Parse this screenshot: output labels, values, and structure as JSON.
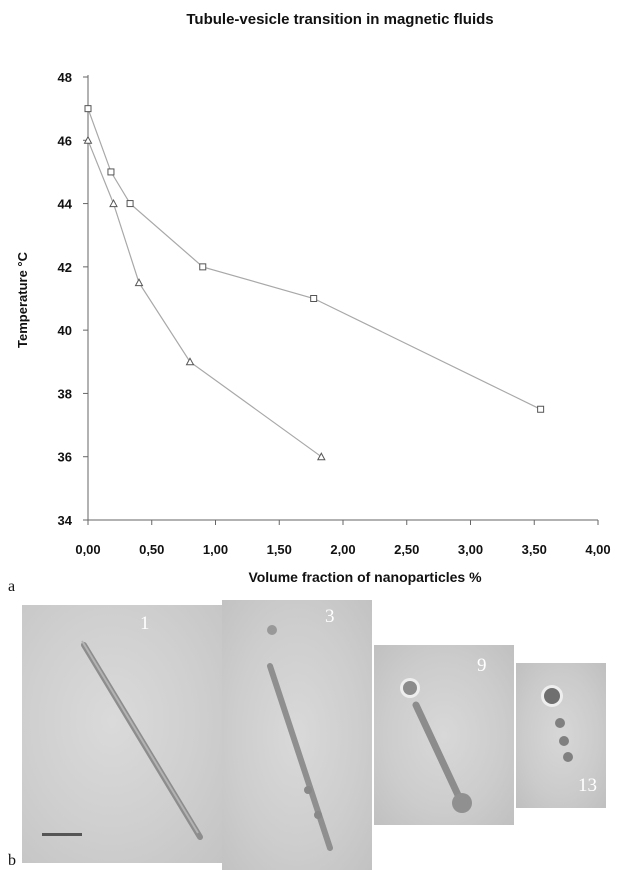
{
  "chart_data": {
    "type": "line",
    "title": "Tubule-vesicle transition in magnetic fluids",
    "xlabel": "Volume fraction of nanoparticles %",
    "ylabel": "Temperature °C",
    "xlim": [
      0,
      4
    ],
    "ylim": [
      34,
      48
    ],
    "x_ticks": [
      "0,00",
      "0,50",
      "1,00",
      "1,50",
      "2,00",
      "2,50",
      "3,00",
      "3,50",
      "4,00"
    ],
    "y_ticks": [
      "34",
      "36",
      "38",
      "40",
      "42",
      "44",
      "46",
      "48"
    ],
    "grid": false,
    "series": [
      {
        "marker": "square",
        "x": [
          0.0,
          0.18,
          0.33,
          0.9,
          1.77,
          3.55
        ],
        "y": [
          47.0,
          45.0,
          44.0,
          42.0,
          41.0,
          37.5
        ]
      },
      {
        "marker": "triangle",
        "x": [
          0.0,
          0.2,
          0.4,
          0.8,
          1.83
        ],
        "y": [
          46.0,
          44.0,
          41.5,
          39.0,
          36.0
        ]
      }
    ],
    "colors": {
      "line": "#a8a8a8",
      "marker": "#555555",
      "axis": "#666666"
    }
  },
  "figure": {
    "panel_a_label": "a",
    "panel_b_label": "b",
    "photos": [
      {
        "number": "1"
      },
      {
        "number": "3"
      },
      {
        "number": "9"
      },
      {
        "number": "13"
      }
    ]
  }
}
